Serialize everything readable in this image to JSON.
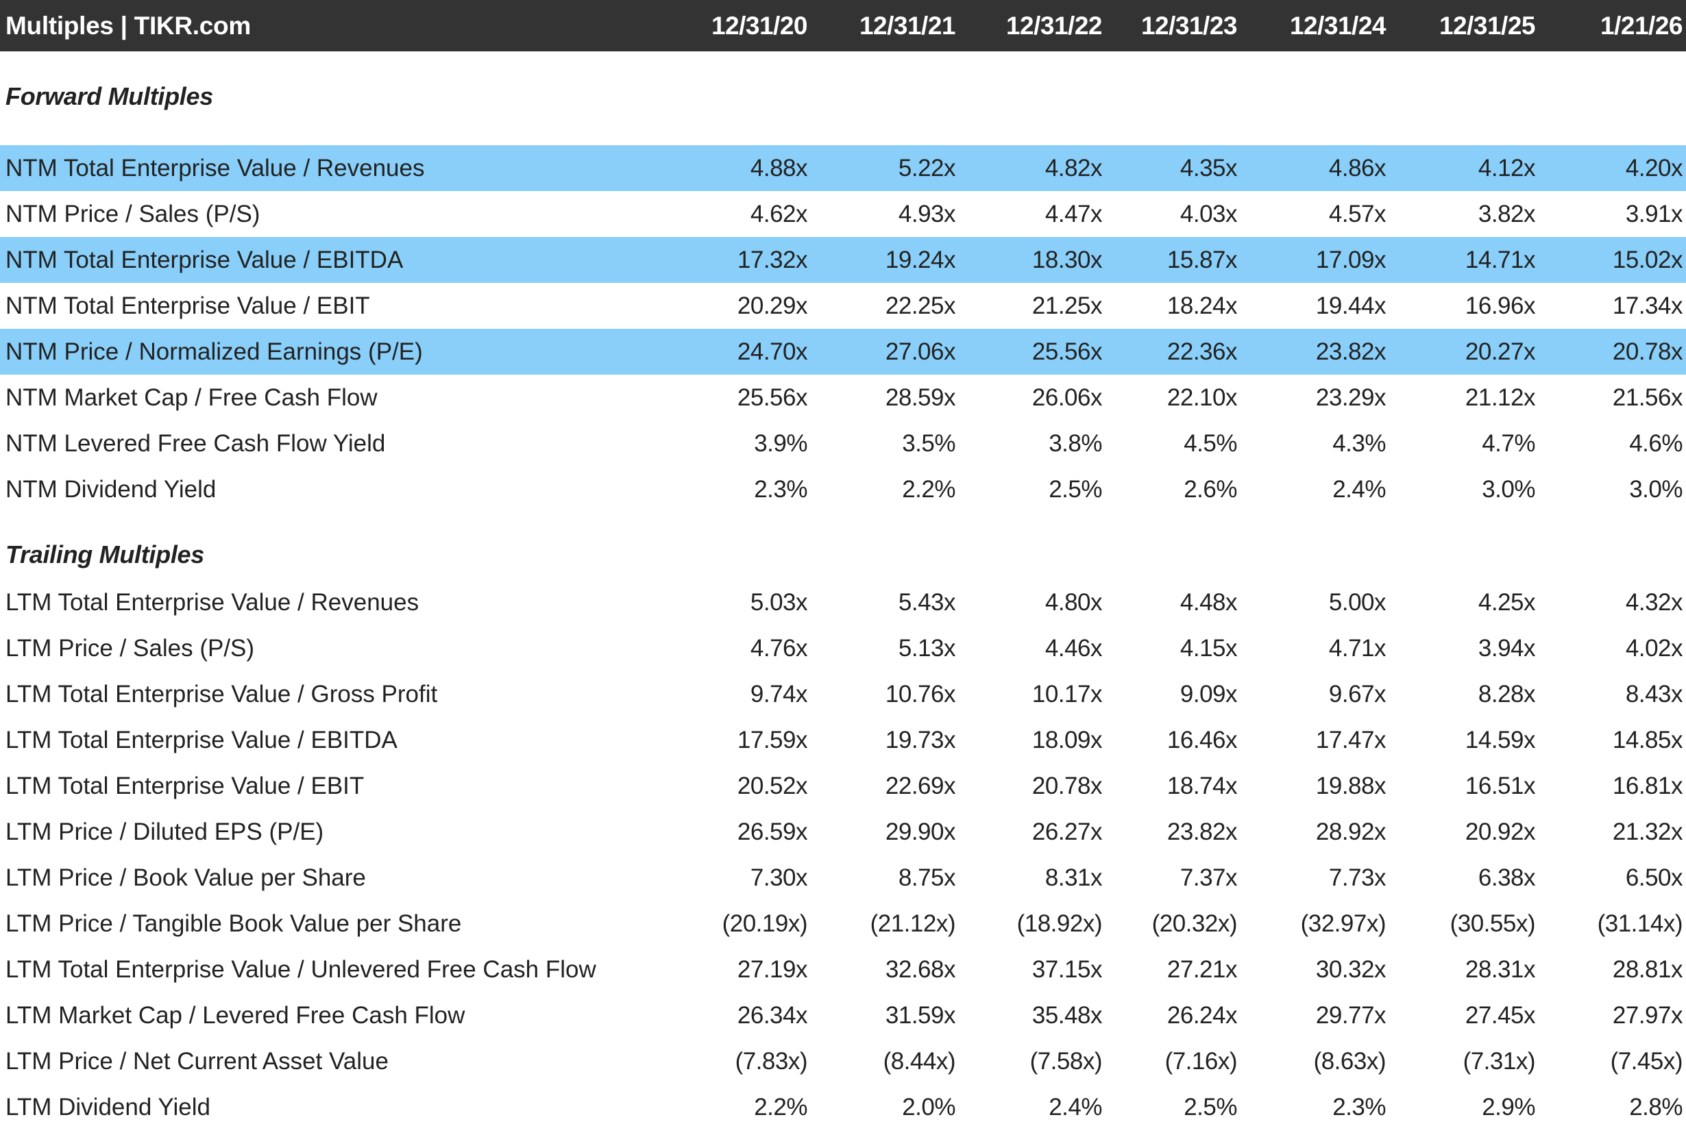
{
  "header": {
    "title": "Multiples | TIKR.com",
    "columns": [
      "12/31/20",
      "12/31/21",
      "12/31/22",
      "12/31/23",
      "12/31/24",
      "12/31/25",
      "1/21/26"
    ]
  },
  "colors": {
    "header_bg": "#333333",
    "highlight": "#89CFF9"
  },
  "forward": {
    "title": "Forward Multiples",
    "rows": [
      {
        "label": "NTM Total Enterprise Value / Revenues",
        "highlight": true,
        "values": [
          "4.88x",
          "5.22x",
          "4.82x",
          "4.35x",
          "4.86x",
          "4.12x",
          "4.20x"
        ]
      },
      {
        "label": "NTM Price / Sales (P/S)",
        "highlight": false,
        "values": [
          "4.62x",
          "4.93x",
          "4.47x",
          "4.03x",
          "4.57x",
          "3.82x",
          "3.91x"
        ]
      },
      {
        "label": "NTM Total Enterprise Value / EBITDA",
        "highlight": true,
        "values": [
          "17.32x",
          "19.24x",
          "18.30x",
          "15.87x",
          "17.09x",
          "14.71x",
          "15.02x"
        ]
      },
      {
        "label": "NTM Total Enterprise Value / EBIT",
        "highlight": false,
        "values": [
          "20.29x",
          "22.25x",
          "21.25x",
          "18.24x",
          "19.44x",
          "16.96x",
          "17.34x"
        ]
      },
      {
        "label": "NTM Price / Normalized Earnings (P/E)",
        "highlight": true,
        "values": [
          "24.70x",
          "27.06x",
          "25.56x",
          "22.36x",
          "23.82x",
          "20.27x",
          "20.78x"
        ]
      },
      {
        "label": "NTM Market Cap / Free Cash Flow",
        "highlight": false,
        "values": [
          "25.56x",
          "28.59x",
          "26.06x",
          "22.10x",
          "23.29x",
          "21.12x",
          "21.56x"
        ]
      },
      {
        "label": "NTM Levered Free Cash Flow Yield",
        "highlight": false,
        "values": [
          "3.9%",
          "3.5%",
          "3.8%",
          "4.5%",
          "4.3%",
          "4.7%",
          "4.6%"
        ]
      },
      {
        "label": "NTM Dividend Yield",
        "highlight": false,
        "values": [
          "2.3%",
          "2.2%",
          "2.5%",
          "2.6%",
          "2.4%",
          "3.0%",
          "3.0%"
        ]
      }
    ]
  },
  "trailing": {
    "title": "Trailing Multiples",
    "rows": [
      {
        "label": "LTM Total Enterprise Value / Revenues",
        "values": [
          "5.03x",
          "5.43x",
          "4.80x",
          "4.48x",
          "5.00x",
          "4.25x",
          "4.32x"
        ]
      },
      {
        "label": "LTM Price / Sales (P/S)",
        "values": [
          "4.76x",
          "5.13x",
          "4.46x",
          "4.15x",
          "4.71x",
          "3.94x",
          "4.02x"
        ]
      },
      {
        "label": "LTM Total Enterprise Value / Gross Profit",
        "values": [
          "9.74x",
          "10.76x",
          "10.17x",
          "9.09x",
          "9.67x",
          "8.28x",
          "8.43x"
        ]
      },
      {
        "label": "LTM Total Enterprise Value / EBITDA",
        "values": [
          "17.59x",
          "19.73x",
          "18.09x",
          "16.46x",
          "17.47x",
          "14.59x",
          "14.85x"
        ]
      },
      {
        "label": "LTM Total Enterprise Value / EBIT",
        "values": [
          "20.52x",
          "22.69x",
          "20.78x",
          "18.74x",
          "19.88x",
          "16.51x",
          "16.81x"
        ]
      },
      {
        "label": "LTM Price / Diluted EPS (P/E)",
        "values": [
          "26.59x",
          "29.90x",
          "26.27x",
          "23.82x",
          "28.92x",
          "20.92x",
          "21.32x"
        ]
      },
      {
        "label": "LTM Price / Book Value per Share",
        "values": [
          "7.30x",
          "8.75x",
          "8.31x",
          "7.37x",
          "7.73x",
          "6.38x",
          "6.50x"
        ]
      },
      {
        "label": "LTM Price / Tangible Book Value per Share",
        "values": [
          "(20.19x)",
          "(21.12x)",
          "(18.92x)",
          "(20.32x)",
          "(32.97x)",
          "(30.55x)",
          "(31.14x)"
        ]
      },
      {
        "label": "LTM Total Enterprise Value / Unlevered Free Cash Flow",
        "values": [
          "27.19x",
          "32.68x",
          "37.15x",
          "27.21x",
          "30.32x",
          "28.31x",
          "28.81x"
        ]
      },
      {
        "label": "LTM Market Cap / Levered Free Cash Flow",
        "values": [
          "26.34x",
          "31.59x",
          "35.48x",
          "26.24x",
          "29.77x",
          "27.45x",
          "27.97x"
        ]
      },
      {
        "label": "LTM Price / Net Current Asset Value",
        "values": [
          "(7.83x)",
          "(8.44x)",
          "(7.58x)",
          "(7.16x)",
          "(8.63x)",
          "(7.31x)",
          "(7.45x)"
        ]
      },
      {
        "label": "LTM Dividend Yield",
        "values": [
          "2.2%",
          "2.0%",
          "2.4%",
          "2.5%",
          "2.3%",
          "2.9%",
          "2.8%"
        ]
      }
    ]
  }
}
